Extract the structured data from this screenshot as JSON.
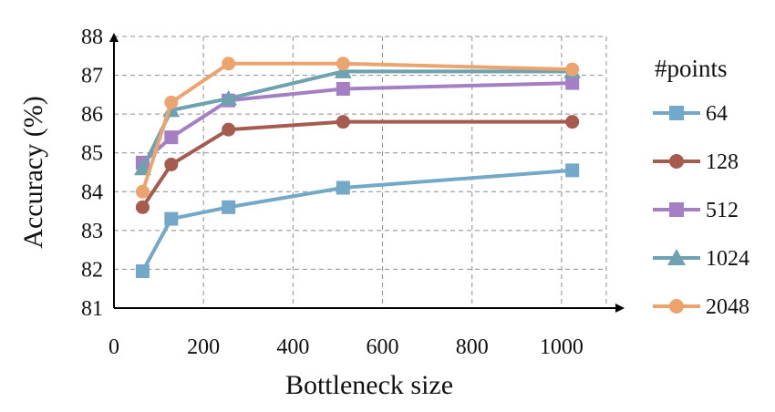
{
  "chart_data": {
    "type": "line",
    "xlabel": "Bottleneck size",
    "ylabel": "Accuracy (%)",
    "xlim": [
      0,
      1100
    ],
    "ylim": [
      81,
      88
    ],
    "xticks": [
      0,
      200,
      400,
      600,
      800,
      1000
    ],
    "yticks": [
      81,
      82,
      83,
      84,
      85,
      86,
      87,
      88
    ],
    "x_tick_labels": [
      "0",
      "200",
      "400",
      "600",
      "800",
      "1000"
    ],
    "y_tick_labels": [
      "81",
      "82",
      "83",
      "84",
      "85",
      "86",
      "87",
      "88"
    ],
    "grid": true,
    "legend": {
      "title": "#points",
      "position": "right"
    },
    "x": [
      64,
      128,
      256,
      512,
      1024
    ],
    "series": [
      {
        "name": "64",
        "color": "#73a8c9",
        "marker": "square",
        "values": [
          81.95,
          83.3,
          83.6,
          84.1,
          84.55
        ]
      },
      {
        "name": "128",
        "color": "#a65b4f",
        "marker": "circle",
        "values": [
          83.6,
          84.7,
          85.6,
          85.8,
          85.8
        ]
      },
      {
        "name": "512",
        "color": "#a57fc3",
        "marker": "square",
        "values": [
          84.75,
          85.4,
          86.35,
          86.65,
          86.8
        ]
      },
      {
        "name": "1024",
        "color": "#6fa2b0",
        "marker": "triangle",
        "values": [
          84.6,
          86.1,
          86.4,
          87.1,
          87.1
        ]
      },
      {
        "name": "2048",
        "color": "#eca46f",
        "marker": "circle",
        "values": [
          84.0,
          86.3,
          87.3,
          87.3,
          87.15
        ]
      }
    ]
  }
}
